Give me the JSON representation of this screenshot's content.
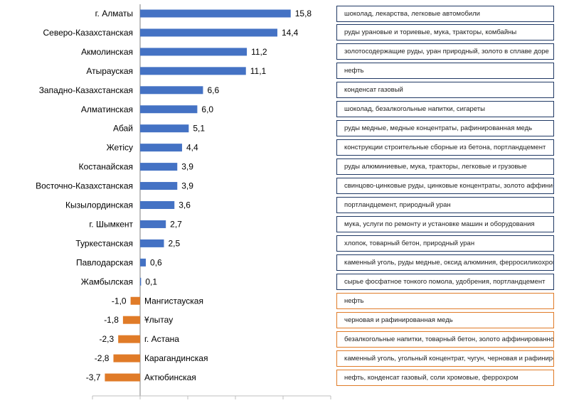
{
  "chart_data": {
    "type": "bar",
    "orientation": "horizontal",
    "categories": [
      "г. Алматы",
      "Северо-Казахстанская",
      "Акмолинская",
      "Атырауская",
      "Западно-Казахстанская",
      "Алматинская",
      "Абай",
      "Жетісу",
      "Костанайская",
      "Восточно-Казахстанская",
      "Кызылординская",
      "г. Шымкент",
      "Туркестанская",
      "Павлодарская",
      "Жамбылская",
      "Мангистауская",
      "Ұлытау",
      "г. Астана",
      "Карагандинская",
      "Актюбинская"
    ],
    "values": [
      15.8,
      14.4,
      11.2,
      11.1,
      6.6,
      6.0,
      5.1,
      4.4,
      3.9,
      3.9,
      3.6,
      2.7,
      2.5,
      0.6,
      0.1,
      -1.0,
      -1.8,
      -2.3,
      -2.8,
      -3.7
    ],
    "value_labels": [
      "15,8",
      "14,4",
      "11,2",
      "11,1",
      "6,6",
      "6,0",
      "5,1",
      "4,4",
      "3,9",
      "3,9",
      "3,6",
      "2,7",
      "2,5",
      "0,6",
      "0,1",
      "-1,0",
      "-1,8",
      "-2,3",
      "-2,8",
      "-3,7"
    ],
    "xlim": [
      -5,
      20
    ],
    "xticks": [
      -5,
      0,
      5,
      10,
      15,
      20
    ],
    "colors": {
      "positive": "#4472c4",
      "negative": "#e07b28",
      "axis": "#7f7f7f"
    },
    "title": "",
    "xlabel": "",
    "ylabel": ""
  },
  "notes": [
    "шоколад, лекарства, легковые автомобили",
    "руды урановые и ториевые, мука, тракторы, комбайны",
    "золотосодержащие руды, уран природный, золото в сплаве доре",
    "нефть",
    "конденсат газовый",
    "шоколад, безалкогольные напитки, сигареты",
    "руды  медные, медные концентраты, рафинированная медь",
    "конструкции строительные сборные из бетона, портландцемент",
    "руды алюминиевые, мука, тракторы, легковые и грузовые",
    "свинцово-цинковые руды, цинковые концентраты, золото аффини-",
    "портландцемент, природный уран",
    "мука, услуги по ремонту и установке машин и оборудования",
    "хлопок, товарный бетон, природный уран",
    "каменный уголь, руды  медные, оксид алюминия, ферросиликохром",
    "сырье фосфатное тонкого помола, удобрения, портландцемент",
    "нефть",
    "черновая и рафинированная медь",
    " безалкогольные напитки, товарный бетон, золото аффинированное",
    "каменный уголь, угольный концентрат, чугун, черновая и рафинирован-",
    "нефть, конденсат газовый, соли хромовые, феррохром"
  ]
}
